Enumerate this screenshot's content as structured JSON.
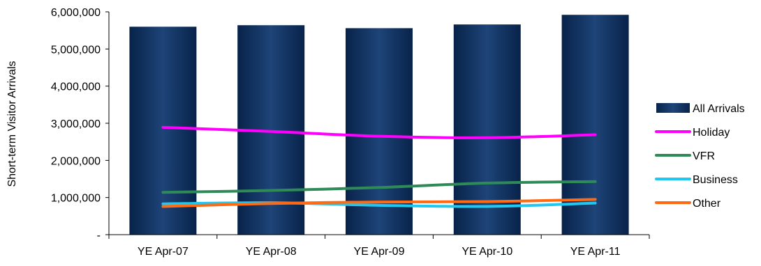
{
  "chart_data": {
    "type": "bar",
    "categories": [
      "YE Apr-07",
      "YE Apr-08",
      "YE Apr-09",
      "YE Apr-10",
      "YE Apr-11"
    ],
    "bar_series": {
      "name": "All Arrivals",
      "values": [
        5600000,
        5640000,
        5560000,
        5660000,
        5920000
      ],
      "color": "#0b2a55"
    },
    "line_series": [
      {
        "name": "Holiday",
        "values": [
          2890000,
          2780000,
          2650000,
          2610000,
          2690000
        ],
        "color": "#ff00ff"
      },
      {
        "name": "VFR",
        "values": [
          1140000,
          1190000,
          1270000,
          1390000,
          1430000
        ],
        "color": "#2e8b57"
      },
      {
        "name": "Business",
        "values": [
          830000,
          860000,
          790000,
          760000,
          850000
        ],
        "color": "#1ec8f0"
      },
      {
        "name": "Other",
        "values": [
          760000,
          840000,
          880000,
          890000,
          950000
        ],
        "color": "#ff6a13"
      }
    ],
    "ylabel": "Short-term Visitor Arrivals",
    "xlabel": "",
    "ylim": [
      0,
      6000000
    ],
    "yticks": [
      0,
      1000000,
      2000000,
      3000000,
      4000000,
      5000000,
      6000000
    ],
    "ytick_labels": [
      "-",
      "1,000,000",
      "2,000,000",
      "3,000,000",
      "4,000,000",
      "5,000,000",
      "6,000,000"
    ],
    "grid": false,
    "legend_position": "right"
  }
}
